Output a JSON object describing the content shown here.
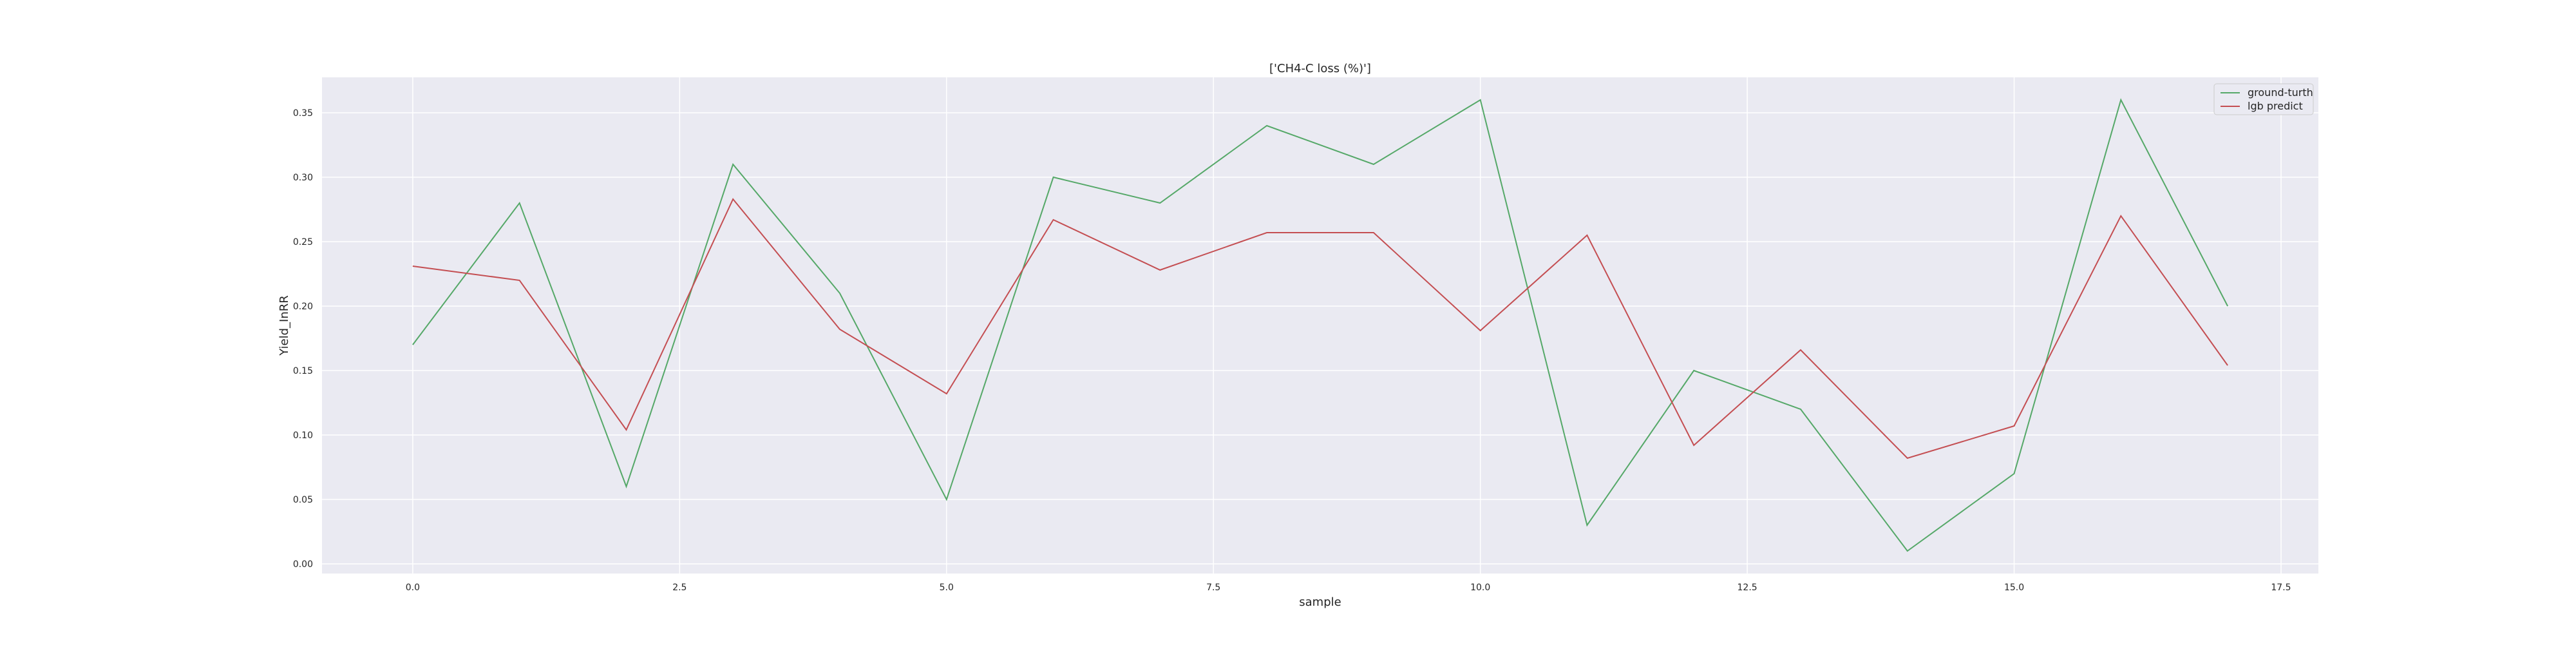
{
  "chart_data": {
    "type": "line",
    "title": "['CH4-C loss (%)']",
    "xlabel": "sample",
    "ylabel": "Yield_InRR",
    "xlim": [
      -0.85,
      17.85
    ],
    "ylim": [
      -0.0075,
      0.3775
    ],
    "xticks": [
      0.0,
      2.5,
      5.0,
      7.5,
      10.0,
      12.5,
      15.0,
      17.5
    ],
    "xtick_labels": [
      "0.0",
      "2.5",
      "5.0",
      "7.5",
      "10.0",
      "12.5",
      "15.0",
      "17.5"
    ],
    "yticks": [
      0.0,
      0.05,
      0.1,
      0.15,
      0.2,
      0.25,
      0.3,
      0.35
    ],
    "ytick_labels": [
      "0.00",
      "0.05",
      "0.10",
      "0.15",
      "0.20",
      "0.25",
      "0.30",
      "0.35"
    ],
    "grid": true,
    "legend_position": "top-right",
    "x": [
      0,
      1,
      2,
      3,
      4,
      5,
      6,
      7,
      8,
      9,
      10,
      11,
      12,
      13,
      14,
      15,
      16,
      17
    ],
    "series": [
      {
        "name": "ground-turth",
        "color": "#55a868",
        "values": [
          0.17,
          0.28,
          0.06,
          0.31,
          0.21,
          0.05,
          0.3,
          0.28,
          0.34,
          0.31,
          0.36,
          0.03,
          0.15,
          0.12,
          0.01,
          0.07,
          0.36,
          0.2
        ]
      },
      {
        "name": "lgb predict",
        "color": "#c44e52",
        "values": [
          0.231,
          0.22,
          0.104,
          0.283,
          0.182,
          0.132,
          0.267,
          0.228,
          0.257,
          0.257,
          0.181,
          0.255,
          0.092,
          0.166,
          0.082,
          0.107,
          0.27,
          0.154
        ]
      }
    ],
    "colors": {
      "background": "#eaeaf2",
      "grid": "#ffffff",
      "legend_bg": "#eaeaf2",
      "legend_border": "#cccccc"
    }
  }
}
